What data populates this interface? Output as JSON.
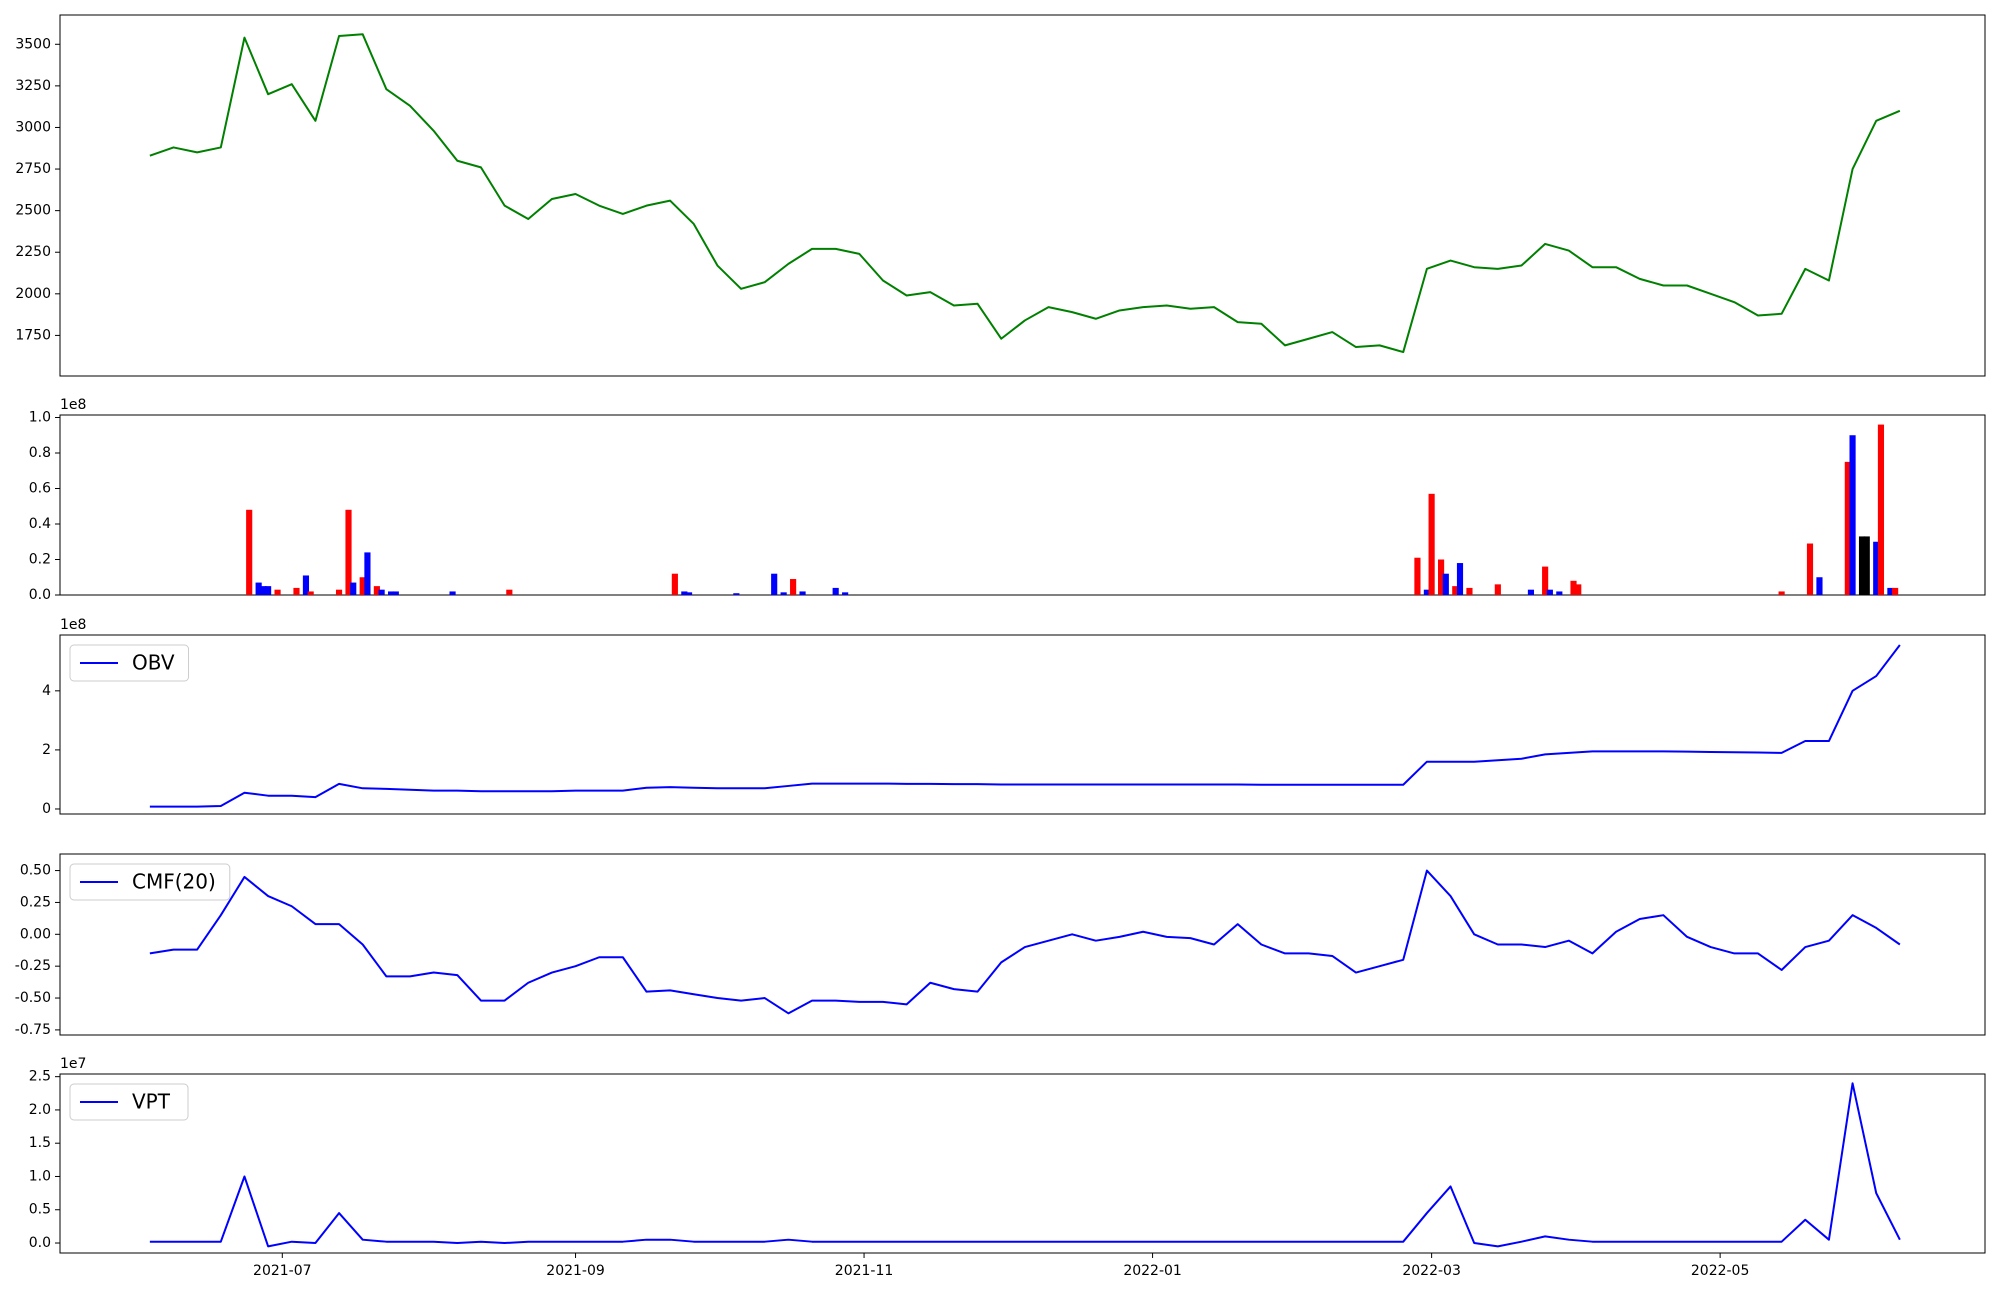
{
  "chart_data": [
    {
      "type": "line",
      "color": "green",
      "xlim": [
        18762,
        19169
      ],
      "ylim": [
        1506,
        3676
      ],
      "yticks": [
        1750,
        2000,
        2250,
        2500,
        2750,
        3000,
        3250,
        3500
      ],
      "x": [
        18781,
        18786,
        18791,
        18796,
        18801,
        18806,
        18811,
        18816,
        18821,
        18826,
        18831,
        18836,
        18841,
        18846,
        18851,
        18856,
        18861,
        18866,
        18871,
        18876,
        18881,
        18886,
        18891,
        18896,
        18901,
        18906,
        18911,
        18916,
        18921,
        18926,
        18931,
        18936,
        18941,
        18946,
        18951,
        18956,
        18961,
        18966,
        18971,
        18976,
        18981,
        18986,
        18991,
        18996,
        19001,
        19006,
        19011,
        19016,
        19021,
        19026,
        19031,
        19036,
        19041,
        19046,
        19051,
        19056,
        19061,
        19066,
        19071,
        19076,
        19081,
        19086,
        19091,
        19096,
        19101,
        19106,
        19111,
        19116,
        19121,
        19126,
        19131,
        19136,
        19141,
        19146,
        19151
      ],
      "values": [
        2830,
        2880,
        2850,
        2880,
        3540,
        3200,
        3260,
        3040,
        3550,
        3560,
        3230,
        3130,
        2980,
        2800,
        2760,
        2530,
        2450,
        2570,
        2600,
        2530,
        2480,
        2530,
        2560,
        2420,
        2170,
        2030,
        2070,
        2180,
        2270,
        2270,
        2240,
        2080,
        1990,
        2010,
        1930,
        1940,
        1730,
        1840,
        1920,
        1890,
        1850,
        1900,
        1920,
        1930,
        1910,
        1920,
        1830,
        1820,
        1690,
        1730,
        1770,
        1680,
        1690,
        1650,
        2150,
        2200,
        2160,
        2150,
        2170,
        2300,
        2260,
        2160,
        2160,
        2090,
        2050,
        2050,
        2000,
        1950,
        1870,
        1880,
        2150,
        2080,
        2750,
        3040,
        3100
      ]
    },
    {
      "type": "bar",
      "offset_label": "1e8",
      "xlim": [
        18762,
        19169
      ],
      "ylim": [
        0,
        1.014
      ],
      "yticks": [
        {
          "value": 0,
          "label": "0.0"
        },
        0.2,
        0.4,
        0.6,
        0.8,
        {
          "value": 1,
          "label": "1.0"
        }
      ],
      "x": [
        18802,
        18804,
        18805,
        18806,
        18808,
        18812,
        18814,
        18815,
        18821,
        18823,
        18824,
        18826,
        18827,
        18829,
        18830,
        18832,
        18833,
        18845,
        18857,
        18892,
        18894,
        18895,
        18905,
        18913,
        18915,
        18917,
        18919,
        18926,
        18928,
        19049,
        19051,
        19052,
        19054,
        19055,
        19057,
        19058,
        19060,
        19066,
        19073,
        19076,
        19077,
        19079,
        19082,
        19083,
        19126,
        19132,
        19134,
        19140,
        19141,
        19143,
        19144,
        19146,
        19147,
        19149,
        19150
      ],
      "values": [
        0.48,
        0.07,
        0.05,
        0.05,
        0.03,
        0.04,
        0.11,
        0.02,
        0.03,
        0.48,
        0.07,
        0.1,
        0.24,
        0.05,
        0.03,
        0.02,
        0.02,
        0.02,
        0.03,
        0.12,
        0.02,
        0.015,
        0.01,
        0.12,
        0.015,
        0.09,
        0.02,
        0.04,
        0.015,
        0.21,
        0.03,
        0.57,
        0.2,
        0.12,
        0.05,
        0.18,
        0.04,
        0.06,
        0.03,
        0.16,
        0.03,
        0.02,
        0.08,
        0.06,
        0.02,
        0.29,
        0.1,
        0.75,
        0.9,
        0.33,
        0.33,
        0.3,
        0.96,
        0.04,
        0.04
      ],
      "colors": [
        "red",
        "blue",
        "blue",
        "blue",
        "red",
        "red",
        "blue",
        "red",
        "red",
        "red",
        "blue",
        "red",
        "blue",
        "red",
        "blue",
        "blue",
        "blue",
        "blue",
        "red",
        "red",
        "blue",
        "blue",
        "blue",
        "blue",
        "blue",
        "red",
        "blue",
        "blue",
        "blue",
        "red",
        "blue",
        "red",
        "red",
        "blue",
        "red",
        "blue",
        "red",
        "red",
        "blue",
        "red",
        "blue",
        "blue",
        "red",
        "red",
        "red",
        "red",
        "blue",
        "red",
        "blue",
        "black",
        "black",
        "blue",
        "red",
        "blue",
        "red"
      ]
    },
    {
      "type": "line",
      "legend": "upper left",
      "offset_label": "1e8",
      "xlim": [
        18762,
        19169
      ],
      "ylim": [
        -0.17,
        5.89
      ],
      "yticks": [
        0,
        2,
        4
      ],
      "x": [
        18781,
        18786,
        18791,
        18796,
        18801,
        18806,
        18811,
        18816,
        18821,
        18826,
        18831,
        18836,
        18841,
        18846,
        18851,
        18856,
        18861,
        18866,
        18871,
        18876,
        18881,
        18886,
        18891,
        18896,
        18901,
        18906,
        18911,
        18916,
        18921,
        18926,
        18931,
        18936,
        18941,
        18946,
        18951,
        18956,
        18961,
        18966,
        18971,
        18976,
        18981,
        18986,
        18991,
        18996,
        19001,
        19006,
        19011,
        19016,
        19021,
        19026,
        19031,
        19036,
        19041,
        19046,
        19051,
        19056,
        19061,
        19066,
        19071,
        19076,
        19081,
        19086,
        19091,
        19096,
        19101,
        19106,
        19111,
        19116,
        19121,
        19126,
        19131,
        19136,
        19141,
        19146,
        19151
      ],
      "series": [
        {
          "name": "OBV",
          "color": "blue",
          "values": [
            0.08,
            0.08,
            0.08,
            0.1,
            0.55,
            0.45,
            0.45,
            0.4,
            0.85,
            0.7,
            0.68,
            0.65,
            0.62,
            0.62,
            0.6,
            0.6,
            0.6,
            0.6,
            0.62,
            0.62,
            0.62,
            0.72,
            0.74,
            0.72,
            0.7,
            0.7,
            0.7,
            0.78,
            0.86,
            0.86,
            0.86,
            0.86,
            0.85,
            0.85,
            0.84,
            0.84,
            0.83,
            0.83,
            0.83,
            0.83,
            0.83,
            0.83,
            0.83,
            0.83,
            0.83,
            0.83,
            0.83,
            0.82,
            0.82,
            0.82,
            0.82,
            0.82,
            0.82,
            0.82,
            1.6,
            1.6,
            1.6,
            1.65,
            1.7,
            1.85,
            1.9,
            1.95,
            1.95,
            1.95,
            1.95,
            1.94,
            1.93,
            1.92,
            1.91,
            1.9,
            2.3,
            2.3,
            4.0,
            4.5,
            5.55
          ]
        }
      ]
    },
    {
      "type": "line",
      "legend": "upper left",
      "xlim": [
        18762,
        19169
      ],
      "ylim": [
        -0.79,
        0.63
      ],
      "yticks": [
        {
          "value": -0.75,
          "label": "-0.75"
        },
        {
          "value": -0.5,
          "label": "-0.50"
        },
        {
          "value": -0.25,
          "label": "-0.25"
        },
        {
          "value": 0,
          "label": "0.00"
        },
        {
          "value": 0.25,
          "label": "0.25"
        },
        {
          "value": 0.5,
          "label": "0.50"
        }
      ],
      "x": [
        18781,
        18786,
        18791,
        18796,
        18801,
        18806,
        18811,
        18816,
        18821,
        18826,
        18831,
        18836,
        18841,
        18846,
        18851,
        18856,
        18861,
        18866,
        18871,
        18876,
        18881,
        18886,
        18891,
        18896,
        18901,
        18906,
        18911,
        18916,
        18921,
        18926,
        18931,
        18936,
        18941,
        18946,
        18951,
        18956,
        18961,
        18966,
        18971,
        18976,
        18981,
        18986,
        18991,
        18996,
        19001,
        19006,
        19011,
        19016,
        19021,
        19026,
        19031,
        19036,
        19041,
        19046,
        19051,
        19056,
        19061,
        19066,
        19071,
        19076,
        19081,
        19086,
        19091,
        19096,
        19101,
        19106,
        19111,
        19116,
        19121,
        19126,
        19131,
        19136,
        19141,
        19146,
        19151
      ],
      "series": [
        {
          "name": "CMF(20)",
          "color": "blue",
          "values": [
            -0.15,
            -0.12,
            -0.12,
            0.15,
            0.45,
            0.3,
            0.22,
            0.08,
            0.08,
            -0.08,
            -0.33,
            -0.33,
            -0.3,
            -0.32,
            -0.52,
            -0.52,
            -0.38,
            -0.3,
            -0.25,
            -0.18,
            -0.18,
            -0.45,
            -0.44,
            -0.47,
            -0.5,
            -0.52,
            -0.5,
            -0.62,
            -0.52,
            -0.52,
            -0.53,
            -0.53,
            -0.55,
            -0.38,
            -0.43,
            -0.45,
            -0.22,
            -0.1,
            -0.05,
            0.0,
            -0.05,
            -0.02,
            0.02,
            -0.02,
            -0.03,
            -0.08,
            0.08,
            -0.08,
            -0.15,
            -0.15,
            -0.17,
            -0.3,
            -0.25,
            -0.2,
            0.5,
            0.3,
            0.0,
            -0.08,
            -0.08,
            -0.1,
            -0.05,
            -0.15,
            0.02,
            0.12,
            0.15,
            -0.02,
            -0.1,
            -0.15,
            -0.15,
            -0.28,
            -0.1,
            -0.05,
            0.15,
            0.05,
            -0.08
          ]
        }
      ]
    },
    {
      "type": "line",
      "legend": "upper left",
      "offset_label": "1e7",
      "xlim": [
        18762,
        19169
      ],
      "ylim": [
        -0.15,
        2.54
      ],
      "yticks": [
        {
          "value": 0,
          "label": "0.0"
        },
        0.5,
        {
          "value": 1,
          "label": "1.0"
        },
        1.5,
        {
          "value": 2,
          "label": "2.0"
        },
        2.5
      ],
      "xticks": [
        {
          "value": 18809,
          "label": "2021-07"
        },
        {
          "value": 18871,
          "label": "2021-09"
        },
        {
          "value": 18932,
          "label": "2021-11"
        },
        {
          "value": 18993,
          "label": "2022-01"
        },
        {
          "value": 19052,
          "label": "2022-03"
        },
        {
          "value": 19113,
          "label": "2022-05"
        }
      ],
      "x": [
        18781,
        18786,
        18791,
        18796,
        18801,
        18806,
        18811,
        18816,
        18821,
        18826,
        18831,
        18836,
        18841,
        18846,
        18851,
        18856,
        18861,
        18866,
        18871,
        18876,
        18881,
        18886,
        18891,
        18896,
        18901,
        18906,
        18911,
        18916,
        18921,
        18926,
        18931,
        18936,
        18941,
        18946,
        18951,
        18956,
        18961,
        18966,
        18971,
        18976,
        18981,
        18986,
        18991,
        18996,
        19001,
        19006,
        19011,
        19016,
        19021,
        19026,
        19031,
        19036,
        19041,
        19046,
        19051,
        19056,
        19061,
        19066,
        19071,
        19076,
        19081,
        19086,
        19091,
        19096,
        19101,
        19106,
        19111,
        19116,
        19121,
        19126,
        19131,
        19136,
        19141,
        19146,
        19151
      ],
      "series": [
        {
          "name": "VPT",
          "color": "blue",
          "values": [
            0.02,
            0.02,
            0.02,
            0.02,
            1.0,
            -0.05,
            0.02,
            0.0,
            0.45,
            0.05,
            0.02,
            0.02,
            0.02,
            0.0,
            0.02,
            0.0,
            0.02,
            0.02,
            0.02,
            0.02,
            0.02,
            0.05,
            0.05,
            0.02,
            0.02,
            0.02,
            0.02,
            0.05,
            0.02,
            0.02,
            0.02,
            0.02,
            0.02,
            0.02,
            0.02,
            0.02,
            0.02,
            0.02,
            0.02,
            0.02,
            0.02,
            0.02,
            0.02,
            0.02,
            0.02,
            0.02,
            0.02,
            0.02,
            0.02,
            0.02,
            0.02,
            0.02,
            0.02,
            0.02,
            0.45,
            0.85,
            0.0,
            -0.05,
            0.02,
            0.1,
            0.05,
            0.02,
            0.02,
            0.02,
            0.02,
            0.02,
            0.02,
            0.02,
            0.02,
            0.02,
            0.35,
            0.05,
            2.4,
            0.75,
            0.05
          ]
        }
      ]
    }
  ]
}
